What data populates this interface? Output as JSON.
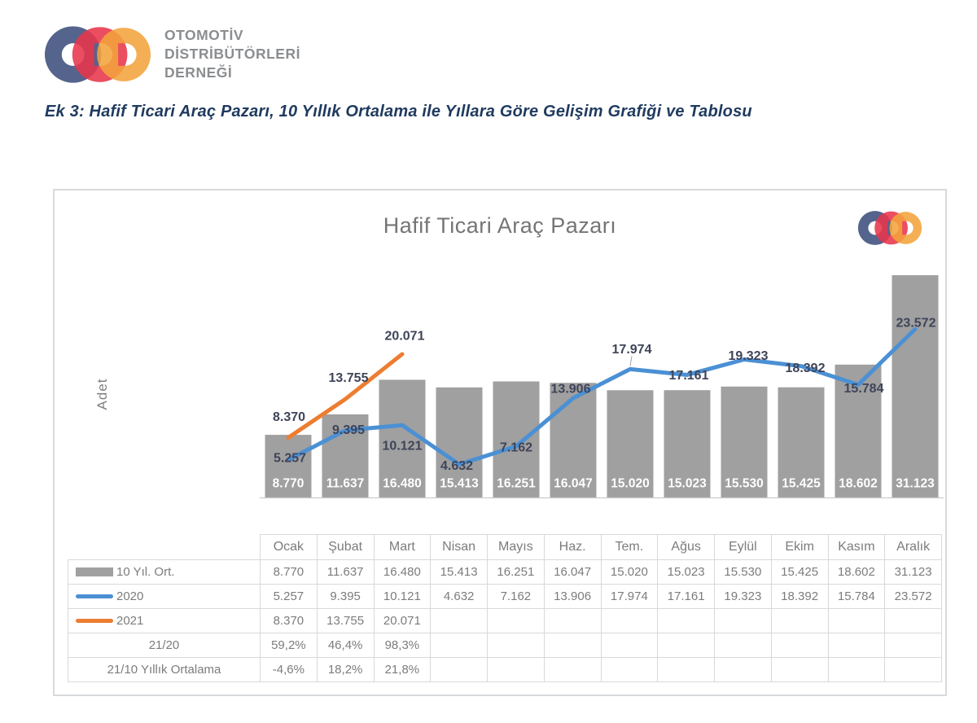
{
  "header": {
    "org_name_lines": [
      "OTOMOTİV",
      "DİSTRİBÜTÖRLERİ",
      "DERNEĞİ"
    ],
    "logo_colors": {
      "o_blue": "#55648C",
      "d_red": "#E8354B",
      "d_orange": "#F2A33C"
    }
  },
  "document": {
    "title": "Ek 3: Hafif Ticari Araç Pazarı, 10 Yıllık Ortalama ile Yıllara Göre Gelişim Grafiği ve Tablosu"
  },
  "chart_data": {
    "type": "combo",
    "title": "Hafif Ticari Araç Pazarı",
    "xlabel": "",
    "ylabel": "Adet",
    "grid": false,
    "legend_position": "table-left",
    "ylim": [
      0,
      33000
    ],
    "categories": [
      "Ocak",
      "Şubat",
      "Mart",
      "Nisan",
      "Mayıs",
      "Haz.",
      "Tem.",
      "Ağus",
      "Eylül",
      "Ekim",
      "Kasım",
      "Aralık"
    ],
    "series": [
      {
        "name": "10 Yıl. Ort.",
        "type": "bar",
        "color": "#A0A0A0",
        "values": [
          8770,
          11637,
          16480,
          15413,
          16251,
          16047,
          15020,
          15023,
          15530,
          15425,
          18602,
          31123
        ],
        "labels": [
          "8.770",
          "11.637",
          "16.480",
          "15.413",
          "16.251",
          "16.047",
          "15.020",
          "15.023",
          "15.530",
          "15.425",
          "18.602",
          "31.123"
        ],
        "label_color": "#FFFFFF",
        "label_position": "inside-base"
      },
      {
        "name": "2020",
        "type": "line",
        "color": "#4B90D4",
        "values": [
          5257,
          9395,
          10121,
          4632,
          7162,
          13906,
          17974,
          17161,
          19323,
          18392,
          15784,
          23572
        ],
        "labels": [
          "5.257",
          "9.395",
          "10.121",
          "4.632",
          "7.162",
          "13.906",
          "17.974",
          "17.161",
          "19.323",
          "18.392",
          "15.784",
          "23.572"
        ],
        "label_color": "#3F4458"
      },
      {
        "name": "2021",
        "type": "line",
        "color": "#ED7D31",
        "values": [
          8370,
          13755,
          20071
        ],
        "labels": [
          "8.370",
          "13.755",
          "20.071"
        ],
        "label_color": "#3F4458"
      }
    ]
  },
  "table": {
    "columns": [
      "Ocak",
      "Şubat",
      "Mart",
      "Nisan",
      "Mayıs",
      "Haz.",
      "Tem.",
      "Ağus",
      "Eylül",
      "Ekim",
      "Kasım",
      "Aralık"
    ],
    "rows": [
      {
        "label": "10 Yıl. Ort.",
        "swatch": "bar-gray",
        "values": [
          "8.770",
          "11.637",
          "16.480",
          "15.413",
          "16.251",
          "16.047",
          "15.020",
          "15.023",
          "15.530",
          "15.425",
          "18.602",
          "31.123"
        ]
      },
      {
        "label": "2020",
        "swatch": "line-blue",
        "values": [
          "5.257",
          "9.395",
          "10.121",
          "4.632",
          "7.162",
          "13.906",
          "17.974",
          "17.161",
          "19.323",
          "18.392",
          "15.784",
          "23.572"
        ]
      },
      {
        "label": "2021",
        "swatch": "line-orange",
        "values": [
          "8.370",
          "13.755",
          "20.071",
          "",
          "",
          "",
          "",
          "",
          "",
          "",
          "",
          ""
        ]
      },
      {
        "label": "21/20",
        "swatch": "none",
        "values": [
          "59,2%",
          "46,4%",
          "98,3%",
          "",
          "",
          "",
          "",
          "",
          "",
          "",
          "",
          ""
        ]
      },
      {
        "label": "21/10 Yıllık Ortalama",
        "swatch": "none",
        "values": [
          "-4,6%",
          "18,2%",
          "21,8%",
          "",
          "",
          "",
          "",
          "",
          "",
          "",
          "",
          ""
        ]
      }
    ]
  },
  "colors": {
    "bar": "#A0A0A0",
    "line_2020": "#4B90D4",
    "line_2021": "#ED7D31",
    "data_label_dark": "#3F4458",
    "table_text": "#7C7C7C",
    "table_border": "#D9D9D9",
    "chart_title": "#757575",
    "doc_title": "#1F3A5F",
    "org_text": "#8B8E90"
  }
}
